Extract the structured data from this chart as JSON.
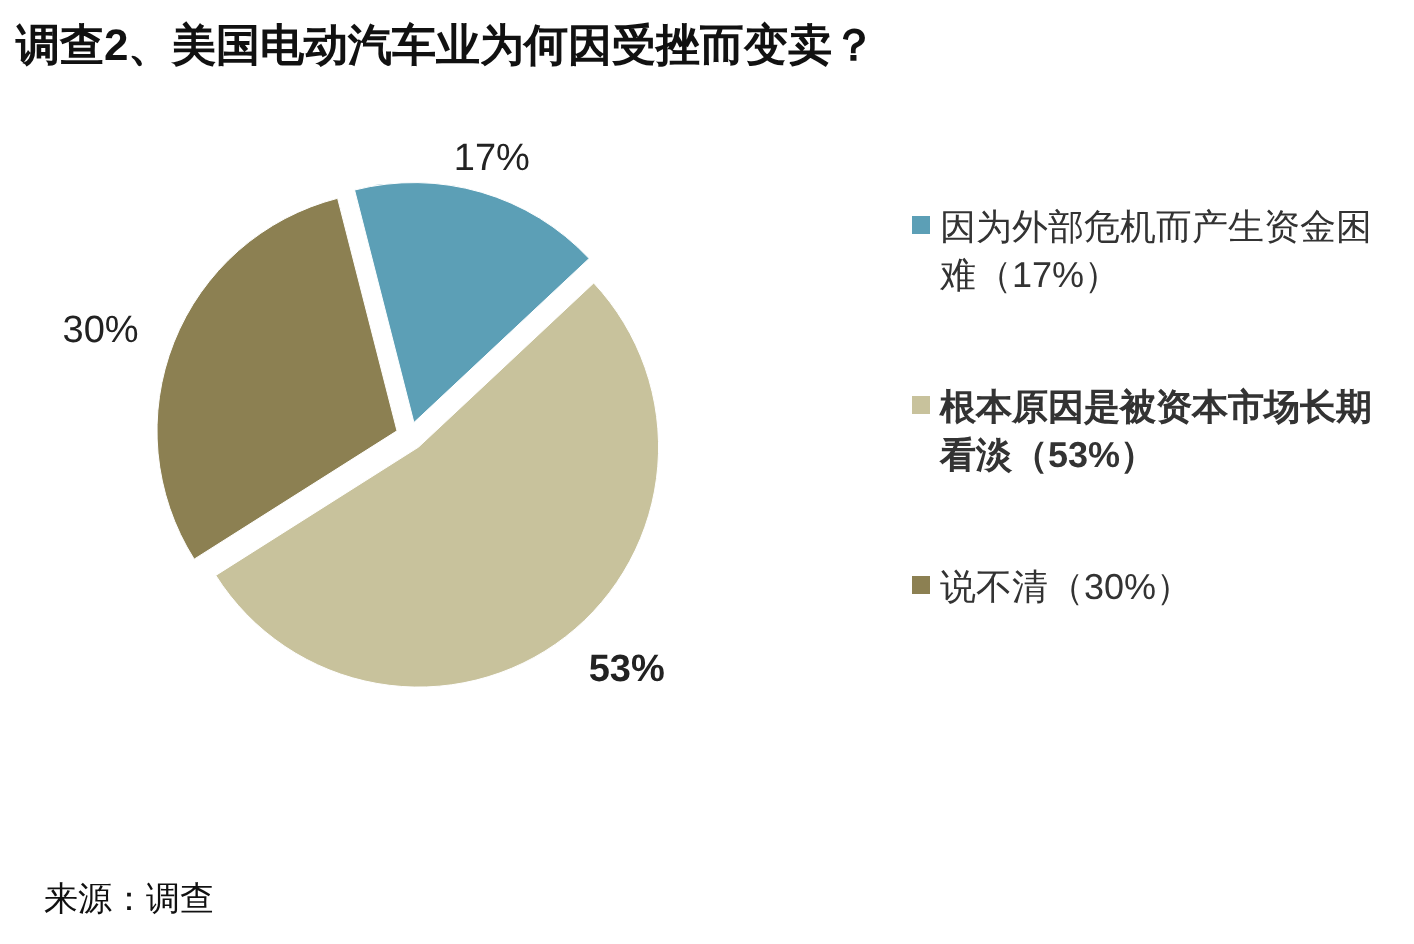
{
  "chart_data": {
    "type": "pie",
    "title": "调查2、美国电动汽车业为何因受挫而变卖？",
    "categories": [
      "因为外部危机而产生资金困难（17%）",
      "根本原因是被资本市场长期看淡（53%）",
      "说不清（30%）"
    ],
    "values": [
      17,
      53,
      30
    ],
    "colors": [
      "#5c9fb6",
      "#c8c29c",
      "#8c8052"
    ],
    "value_labels": [
      "17%",
      "53%",
      "30%"
    ],
    "legend": "right",
    "annotations": [
      "来源：调查"
    ]
  }
}
